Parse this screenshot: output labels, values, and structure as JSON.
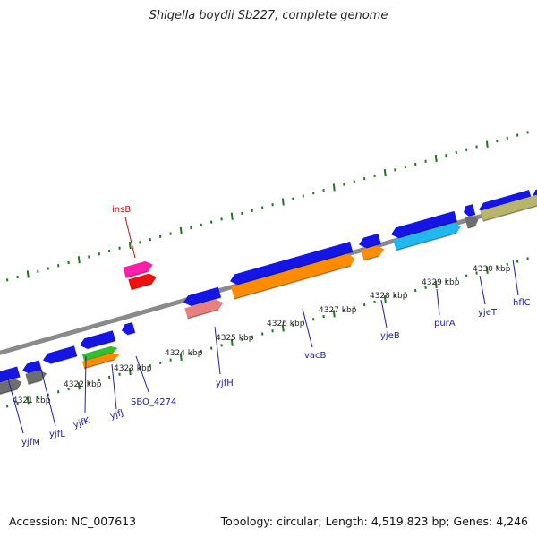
{
  "title": "Shigella boydii Sb227, complete genome",
  "footer": {
    "accession": "Accession: NC_007613",
    "summary": "Topology: circular; Length: 4,519,823 bp; Genes: 4,246"
  },
  "colors": {
    "backbone": "#8a8a8a",
    "tick": "#1a7a1a",
    "label_blue": "#1b1bb0",
    "label_red": "#c01010"
  },
  "kbp_labels": [
    "4321 kbp",
    "4322 kbp",
    "4323 kbp",
    "4324 kbp",
    "4325 kbp",
    "4326 kbp",
    "4327 kbp",
    "4328 kbp",
    "4329 kbp",
    "4330 kbp"
  ],
  "gene_labels": [
    "insB",
    "yjfM",
    "yjfL",
    "yjfK",
    "yjfJ",
    "SBO_4274",
    "yjfH",
    "vacB",
    "yjeB",
    "purA",
    "yjeT",
    "hflC"
  ]
}
